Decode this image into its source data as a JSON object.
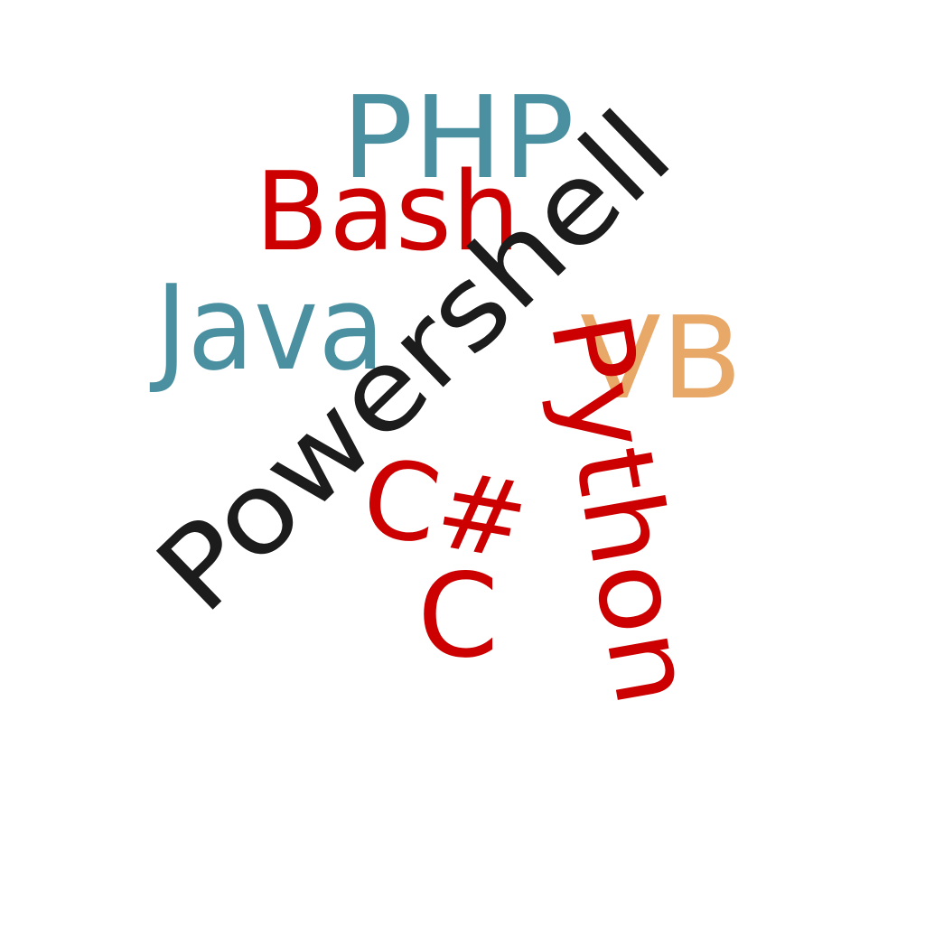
{
  "words": [
    {
      "id": "php",
      "text": "PHP",
      "color": "#4a90a0"
    },
    {
      "id": "bash",
      "text": "Bash",
      "color": "#cc0000"
    },
    {
      "id": "java",
      "text": "Java",
      "color": "#4a90a0"
    },
    {
      "id": "powershell",
      "text": "Powershell",
      "color": "#1c1c1c"
    },
    {
      "id": "vb",
      "text": "VB",
      "color": "#e8a868"
    },
    {
      "id": "python",
      "text": "Python",
      "color": "#cc0000"
    },
    {
      "id": "csharp",
      "text": "C#",
      "color": "#cc0000"
    },
    {
      "id": "c",
      "text": "C",
      "color": "#cc0000"
    }
  ]
}
